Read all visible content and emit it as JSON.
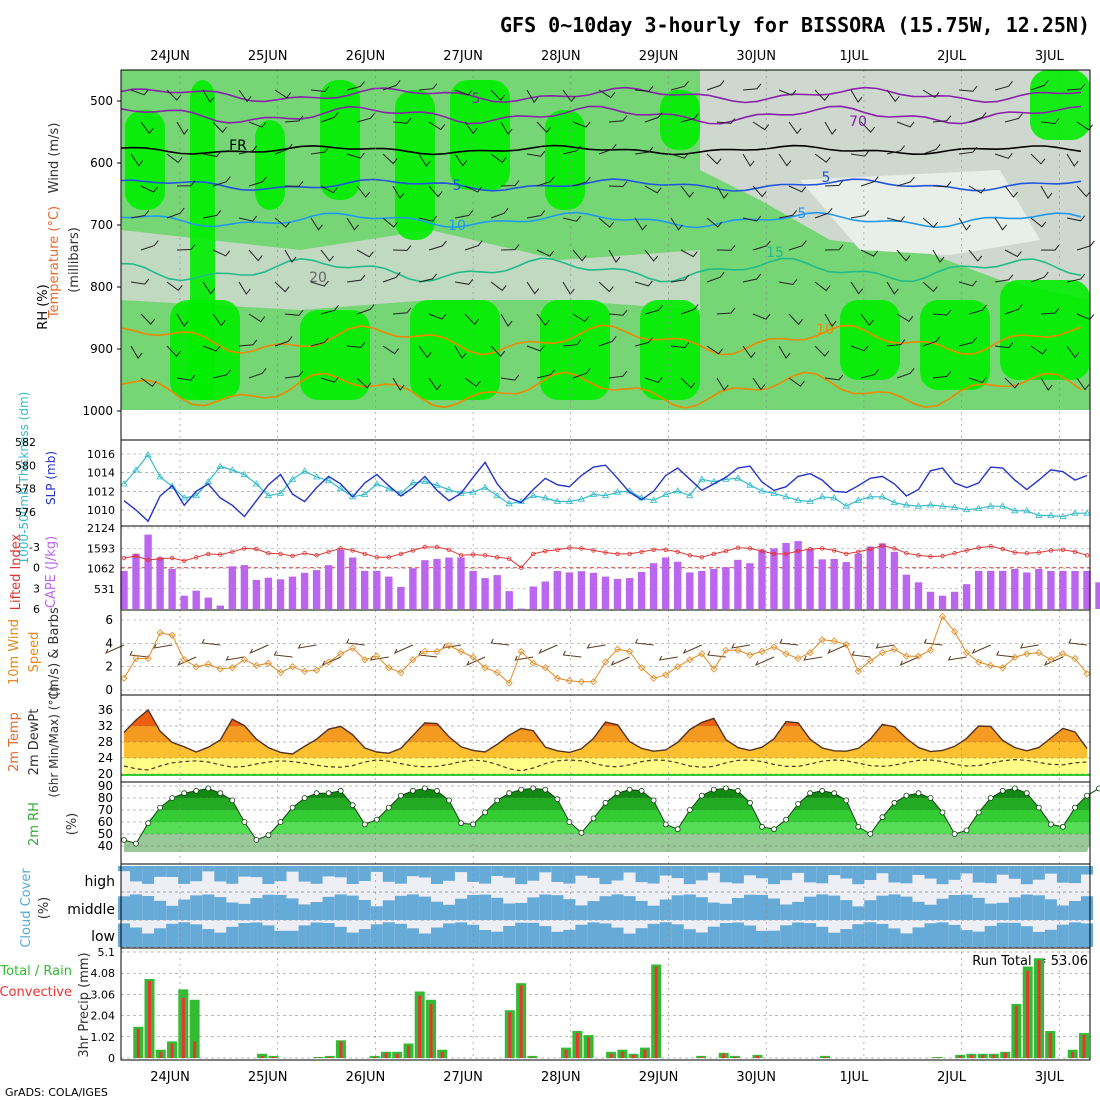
{
  "page": {
    "title": "GFS 0~10day 3-hourly for BISSORA (15.75W, 12.25N)",
    "footer": "GrADS: COLA/IGES"
  },
  "chart_data": {
    "type": "meteogram",
    "x_dates": [
      "24JUN",
      "25JUN",
      "26JUN",
      "27JUN",
      "28JUN",
      "29JUN",
      "30JUN",
      "1JUL",
      "2JUL",
      "3JUL"
    ],
    "colors": {
      "rh_light": "#cfd8cf",
      "rh_mid": "#76d676",
      "rh_high": "#00ee00",
      "thickness": "#33bbcc",
      "slp": "#2233cc",
      "cape": "#bb66ee",
      "lifted_index": "#dd3333",
      "wind10m": "#e08a20",
      "cloud": "#66aad8",
      "precip_total": "#33bb33",
      "precip_conv": "#ee3333"
    },
    "upper_air": {
      "ylabel_rh": "RH (%)",
      "ylabel_temp": "Temperature (°C)",
      "ylabel_wind": "Wind (m/s)",
      "ylabel_pressure": "(millibars)",
      "y_ticks": [
        "500",
        "600",
        "700",
        "800",
        "900",
        "1000"
      ],
      "contour_labels": [
        "5",
        "FR",
        "5",
        "10",
        "15",
        "20",
        "70",
        "5",
        "5",
        "10",
        "20"
      ]
    },
    "thickness_slp": {
      "ylabel_thick": "1000-500mb Thickness (dm)",
      "ylabel_slp": "SLP (mb)",
      "thick_ticks": [
        "582",
        "580",
        "578",
        "576"
      ],
      "slp_ticks": [
        "1016",
        "1014",
        "1012",
        "1010"
      ],
      "thickness": [
        578.4,
        579.6,
        580.9,
        579.0,
        578.2,
        577.2,
        577.4,
        578.6,
        579.9,
        579.6,
        579.2,
        578.4,
        577.4,
        577.6,
        578.8,
        579.5,
        579.0,
        578.7,
        578.0,
        577.3,
        577.5,
        578.4,
        578.0,
        577.6,
        578.5,
        578.6,
        578.3,
        577.9,
        577.6,
        577.7,
        578.1,
        577.4,
        576.7,
        576.9,
        577.4,
        577.2,
        576.9,
        576.9,
        577.1,
        577.5,
        577.4,
        577.7,
        577.8,
        577.2,
        577.0,
        577.5,
        577.8,
        577.4,
        578.8,
        578.6,
        578.8,
        578.9,
        578.3,
        577.8,
        577.6,
        577.3,
        577.0,
        576.9,
        577.3,
        577.2,
        576.5,
        577.0,
        577.3,
        577.3,
        576.8,
        576.6,
        576.5,
        576.6,
        576.5,
        576.4,
        576.2,
        576.3,
        576.5,
        576.5,
        576.1,
        576.1,
        575.7,
        575.7,
        575.6,
        575.9,
        575.9
      ],
      "slp": [
        1011.0,
        1010.0,
        1008.8,
        1011.5,
        1012.6,
        1010.5,
        1012.0,
        1012.8,
        1011.3,
        1010.5,
        1009.3,
        1011.0,
        1012.7,
        1013.8,
        1011.7,
        1010.9,
        1012.4,
        1013.6,
        1012.8,
        1011.4,
        1012.9,
        1013.8,
        1012.6,
        1011.5,
        1012.4,
        1013.6,
        1012.1,
        1011.0,
        1011.8,
        1013.5,
        1015.1,
        1012.8,
        1011.3,
        1010.8,
        1012.2,
        1013.4,
        1012.7,
        1012.5,
        1013.7,
        1014.6,
        1014.8,
        1013.4,
        1011.9,
        1011.1,
        1012.0,
        1013.7,
        1014.5,
        1013.3,
        1012.1,
        1012.8,
        1013.5,
        1014.5,
        1014.7,
        1013.0,
        1012.1,
        1012.5,
        1013.6,
        1013.9,
        1013.2,
        1012.0,
        1011.9,
        1012.6,
        1013.4,
        1013.6,
        1012.8,
        1011.5,
        1012.2,
        1014.2,
        1014.5,
        1012.9,
        1012.4,
        1012.9,
        1014.6,
        1014.5,
        1013.2,
        1012.2,
        1013.2,
        1014.3,
        1014.1,
        1013.2,
        1013.7
      ]
    },
    "cape_li": {
      "ylabel_li": "Lifted Index",
      "ylabel_cape": "CAPE (J/kg)",
      "li_ticks": [
        "-3",
        "0",
        "3",
        "6"
      ],
      "cape_ticks": [
        "2124",
        "1593",
        "1062",
        "531"
      ],
      "cape": [
        1000,
        1450,
        1950,
        1350,
        1050,
        350,
        480,
        300,
        90,
        1120,
        1150,
        760,
        820,
        780,
        850,
        950,
        1020,
        1150,
        1550,
        1350,
        1000,
        1000,
        850,
        580,
        1070,
        1280,
        1310,
        1350,
        1350,
        1000,
        810,
        890,
        470,
        10,
        590,
        720,
        1000,
        960,
        990,
        950,
        850,
        790,
        810,
        970,
        1200,
        1350,
        1240,
        960,
        1000,
        1050,
        1100,
        1290,
        1200,
        1550,
        1590,
        1730,
        1780,
        1560,
        1300,
        1310,
        1230,
        1450,
        1640,
        1720,
        1500,
        900,
        700,
        450,
        350,
        450,
        650,
        1000,
        1000,
        1000,
        1050,
        960,
        1050,
        1000,
        1000,
        1000,
        1000,
        700
      ],
      "lifted_index": [
        -1.4,
        -1.7,
        -1.1,
        -1.3,
        -1.4,
        -1.0,
        -1.5,
        -2.0,
        -1.9,
        -2.3,
        -2.8,
        -2.7,
        -2.1,
        -2.0,
        -1.7,
        -2.1,
        -1.8,
        -2.3,
        -2.8,
        -2.5,
        -2.0,
        -1.5,
        -1.5,
        -2.0,
        -2.5,
        -3.0,
        -3.0,
        -2.6,
        -1.8,
        -1.9,
        -1.8,
        -1.5,
        -1.3,
        0.0,
        -2.0,
        -2.4,
        -2.6,
        -2.9,
        -2.8,
        -2.5,
        -2.2,
        -2.0,
        -2.0,
        -2.3,
        -2.6,
        -2.6,
        -2.3,
        -1.8,
        -1.5,
        -2.0,
        -2.4,
        -2.9,
        -2.8,
        -2.4,
        -2.0,
        -2.0,
        -2.4,
        -2.7,
        -2.8,
        -2.5,
        -2.0,
        -2.3,
        -2.7,
        -3.2,
        -2.8,
        -2.1,
        -1.8,
        -1.6,
        -1.7,
        -2.1,
        -2.5,
        -2.9,
        -3.1,
        -2.7,
        -2.2,
        -2.1,
        -2.2,
        -2.5,
        -2.6,
        -2.3,
        -1.8
      ]
    },
    "wind10m": {
      "ylabel_a": "10m Wind",
      "ylabel_b": "Speed",
      "ylabel_c": "(m/s) & Barbs",
      "ticks": [
        "6",
        "4",
        "2",
        "0"
      ],
      "speed": [
        1.0,
        2.7,
        2.7,
        4.9,
        4.7,
        2.6,
        2.0,
        2.2,
        1.8,
        1.9,
        2.6,
        2.1,
        2.3,
        1.5,
        2.0,
        1.6,
        1.7,
        2.4,
        3.1,
        3.6,
        2.6,
        2.9,
        1.9,
        1.5,
        2.6,
        3.3,
        3.3,
        3.8,
        3.3,
        2.8,
        1.9,
        1.5,
        0.6,
        3.3,
        2.3,
        1.9,
        1.0,
        0.8,
        0.7,
        0.7,
        2.4,
        3.5,
        3.3,
        1.9,
        1.0,
        1.3,
        2.0,
        2.6,
        3.1,
        1.8,
        3.4,
        3.4,
        3.0,
        3.3,
        3.7,
        3.1,
        2.7,
        3.2,
        4.3,
        4.2,
        3.9,
        1.6,
        2.5,
        3.2,
        3.5,
        2.9,
        2.9,
        3.4,
        6.3,
        5.0,
        3.2,
        2.4,
        2.1,
        1.9,
        2.8,
        3.1,
        3.2,
        2.6,
        3.1,
        2.7,
        1.4
      ]
    },
    "temp2m": {
      "ylabel_a": "2m Temp",
      "ylabel_b": "2m DewPt",
      "ylabel_c": "(6hr Min/Max) (°C)",
      "ticks": [
        "36",
        "32",
        "28",
        "24",
        "20"
      ],
      "temp": [
        30.4,
        33.5,
        36.0,
        30.7,
        27.9,
        26.8,
        25.5,
        26.7,
        28.5,
        33.7,
        32.1,
        28.7,
        26.6,
        25.4,
        25.0,
        26.9,
        28.7,
        31.2,
        31.9,
        29.8,
        26.5,
        25.5,
        25.2,
        26.4,
        29.6,
        32.8,
        32.6,
        29.3,
        26.8,
        25.9,
        25.5,
        27.4,
        29.7,
        31.4,
        30.8,
        26.7,
        25.8,
        25.4,
        26.3,
        28.9,
        33.0,
        32.3,
        28.1,
        26.4,
        25.7,
        26.0,
        27.9,
        31.1,
        32.9,
        33.9,
        28.6,
        26.6,
        25.9,
        26.7,
        28.8,
        33.1,
        32.8,
        28.7,
        26.5,
        25.8,
        25.7,
        26.4,
        28.7,
        32.4,
        31.8,
        28.9,
        26.6,
        25.6,
        25.9,
        26.9,
        28.9,
        32.0,
        31.9,
        28.4,
        26.6,
        25.8,
        26.6,
        29.0,
        31.4,
        30.5,
        26.4
      ],
      "dewpt": [
        22.0,
        21.3,
        21.0,
        22.0,
        22.8,
        23.1,
        23.3,
        23.0,
        22.3,
        21.7,
        21.9,
        22.5,
        23.0,
        23.3,
        23.1,
        22.7,
        22.2,
        21.8,
        21.7,
        22.1,
        23.0,
        23.5,
        23.2,
        22.6,
        22.0,
        21.8,
        21.9,
        22.4,
        23.1,
        23.5,
        23.2,
        22.4,
        21.3,
        20.8,
        21.5,
        22.6,
        23.3,
        23.5,
        23.3,
        22.7,
        22.0,
        21.8,
        22.3,
        23.1,
        23.5,
        23.4,
        22.8,
        22.0,
        21.7,
        21.9,
        22.8,
        23.4,
        23.5,
        23.1,
        22.4,
        21.9,
        21.9,
        22.5,
        23.2,
        23.5,
        23.3,
        22.7,
        22.1,
        21.9,
        22.2,
        22.9,
        23.4,
        23.5,
        23.1,
        22.4,
        22.0,
        22.1,
        22.7,
        23.3,
        23.6,
        23.4,
        22.9,
        22.4,
        22.3,
        22.8,
        23.0
      ]
    },
    "rh2m": {
      "ylabel": "2m RH",
      "ylabel_unit": "(%)",
      "ticks": [
        "90",
        "80",
        "70",
        "60",
        "50",
        "40"
      ],
      "values": [
        45,
        42,
        59,
        72,
        80,
        84,
        86,
        88,
        84,
        78,
        60,
        45,
        49,
        60,
        72,
        80,
        84,
        84,
        86,
        74,
        58,
        62,
        72,
        82,
        86,
        88,
        86,
        78,
        59,
        58,
        68,
        78,
        84,
        87,
        88,
        87,
        79,
        60,
        51,
        63,
        76,
        84,
        87,
        86,
        78,
        58,
        54,
        70,
        82,
        87,
        88,
        86,
        76,
        56,
        54,
        62,
        75,
        84,
        86,
        84,
        78,
        56,
        50,
        64,
        76,
        82,
        84,
        80,
        68,
        50,
        53,
        68,
        80,
        86,
        88,
        84,
        72,
        58,
        56,
        72,
        82,
        88,
        90
      ]
    },
    "cloud": {
      "ylabel_a": "Cloud Cover",
      "ylabel_b": "(%)",
      "levels": [
        "high",
        "middle",
        "low"
      ]
    },
    "precip": {
      "ylabel_a": "Total / Rain",
      "ylabel_b": "Convective",
      "ylabel_c": "3hr Precip (mm)",
      "ticks": [
        "5.1",
        "4.08",
        "3.06",
        "2.04",
        "1.02",
        "0"
      ],
      "run_total_label": "Run Total = 53.06",
      "total": [
        0,
        1.5,
        3.8,
        0.4,
        0.8,
        3.3,
        2.8,
        0,
        0,
        0,
        0,
        0,
        0.2,
        0.1,
        0,
        0,
        0,
        0.05,
        0.1,
        0.85,
        0,
        0,
        0.1,
        0.3,
        0.3,
        0.7,
        3.2,
        2.8,
        0.4,
        0,
        0,
        0,
        0,
        0,
        2.3,
        3.6,
        0.1,
        0,
        0,
        0.5,
        1.3,
        1.1,
        0,
        0.3,
        0.4,
        0.2,
        0.5,
        4.5,
        0,
        0,
        0,
        0.1,
        0,
        0.25,
        0.1,
        0,
        0.15,
        0,
        0,
        0,
        0,
        0,
        0.1,
        0,
        0,
        0,
        0,
        0,
        0,
        0,
        0,
        0,
        0.05,
        0,
        0.15,
        0.2,
        0.2,
        0.2,
        0.3,
        2.6,
        4.4,
        4.8,
        1.3,
        0,
        0.4,
        1.2
      ],
      "convective": [
        0,
        1.4,
        3.7,
        0.3,
        0.7,
        2.9,
        0.8,
        0,
        0,
        0,
        0,
        0,
        0.1,
        0.05,
        0,
        0,
        0,
        0.02,
        0.05,
        0.8,
        0,
        0,
        0.05,
        0.25,
        0.2,
        0.6,
        3.0,
        2.6,
        0.3,
        0,
        0,
        0,
        0,
        0,
        2.2,
        3.5,
        0.05,
        0,
        0,
        0.4,
        1.2,
        1.0,
        0,
        0.2,
        0.3,
        0.15,
        0.4,
        4.4,
        0,
        0,
        0,
        0.05,
        0,
        0.2,
        0.05,
        0,
        0.1,
        0,
        0,
        0,
        0,
        0,
        0.05,
        0,
        0,
        0,
        0,
        0,
        0,
        0,
        0,
        0,
        0.02,
        0,
        0.1,
        0.15,
        0.15,
        0.15,
        0.25,
        2.5,
        4.2,
        4.7,
        1.2,
        0,
        0.3,
        1.1
      ]
    }
  }
}
